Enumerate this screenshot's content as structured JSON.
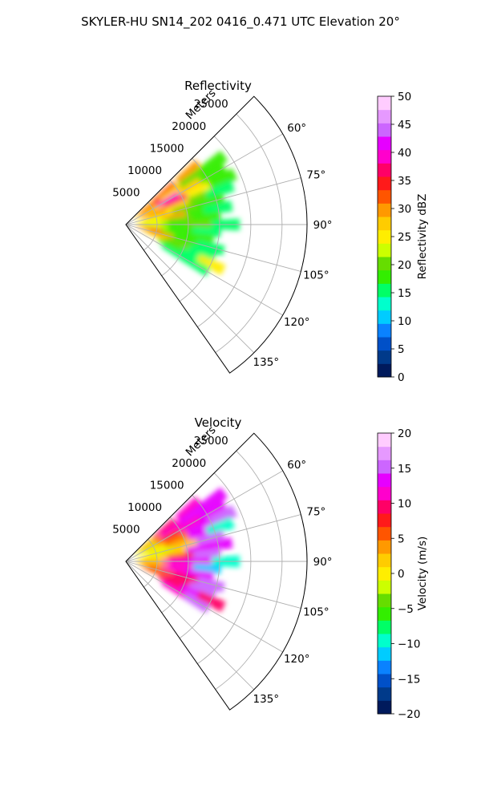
{
  "figure": {
    "suptitle": "SKYLER-HU  SN14_202  0416_0.471 UTC Elevation 20°"
  },
  "chart_data": [
    {
      "type": "heatmap",
      "subtype": "polar-sector-ppi",
      "title": "Reflectivity",
      "radial_axis": {
        "label": "Meters",
        "range": [
          0,
          29000
        ],
        "ticks": [
          5000,
          10000,
          15000,
          20000,
          25000
        ],
        "tick_labels": [
          "5000",
          "10000",
          "15000",
          "20000",
          "25000"
        ]
      },
      "angular_axis": {
        "range": [
          45,
          145
        ],
        "ticks": [
          60,
          75,
          90,
          105,
          120,
          135
        ],
        "tick_labels": [
          "60°",
          "75°",
          "90°",
          "105°",
          "120°",
          "135°"
        ],
        "zero": "north",
        "direction": "clockwise"
      },
      "grid": true,
      "colorbar": {
        "label": "Reflectivity dBZ",
        "range": [
          0,
          50
        ],
        "ticks": [
          0,
          5,
          10,
          15,
          20,
          25,
          30,
          35,
          40,
          45,
          50
        ],
        "tick_labels": [
          "0",
          "5",
          "10",
          "15",
          "20",
          "25",
          "30",
          "35",
          "40",
          "45",
          "50"
        ],
        "colors": [
          "#001a5c",
          "#003a8a",
          "#0050c8",
          "#0a82ff",
          "#00ccff",
          "#00ffcc",
          "#00ff66",
          "#33ee00",
          "#66dd00",
          "#ccff00",
          "#ffee00",
          "#ffcc00",
          "#ff9900",
          "#ff5500",
          "#ff1a1a",
          "#ff0066",
          "#ff00cc",
          "#e600ff",
          "#cc66ff",
          "#e699ff",
          "#ffccff"
        ]
      },
      "field_extent_m": 20000,
      "field_cells": [
        {
          "az": 50,
          "r": 4000,
          "v": 30
        },
        {
          "az": 50,
          "r": 8000,
          "v": 33
        },
        {
          "az": 50,
          "r": 13000,
          "v": 30
        },
        {
          "az": 55,
          "r": 5000,
          "v": 32
        },
        {
          "az": 55,
          "r": 9000,
          "v": 28
        },
        {
          "az": 55,
          "r": 13000,
          "v": 20
        },
        {
          "az": 55,
          "r": 17000,
          "v": 19
        },
        {
          "az": 60,
          "r": 4000,
          "v": 28
        },
        {
          "az": 60,
          "r": 8000,
          "v": 40
        },
        {
          "az": 60,
          "r": 12000,
          "v": 27
        },
        {
          "az": 60,
          "r": 16000,
          "v": 18
        },
        {
          "az": 65,
          "r": 6000,
          "v": 27
        },
        {
          "az": 65,
          "r": 9000,
          "v": 38
        },
        {
          "az": 65,
          "r": 13000,
          "v": 24
        },
        {
          "az": 65,
          "r": 17000,
          "v": 18
        },
        {
          "az": 70,
          "r": 5000,
          "v": 31
        },
        {
          "az": 70,
          "r": 9000,
          "v": 28
        },
        {
          "az": 70,
          "r": 13000,
          "v": 20
        },
        {
          "az": 70,
          "r": 16000,
          "v": 16
        },
        {
          "az": 75,
          "r": 6000,
          "v": 24
        },
        {
          "az": 75,
          "r": 10000,
          "v": 21
        },
        {
          "az": 75,
          "r": 14000,
          "v": 18
        },
        {
          "az": 80,
          "r": 4000,
          "v": 26
        },
        {
          "az": 80,
          "r": 8000,
          "v": 30
        },
        {
          "az": 80,
          "r": 12000,
          "v": 19
        },
        {
          "az": 80,
          "r": 15000,
          "v": 15
        },
        {
          "az": 85,
          "r": 5000,
          "v": 22
        },
        {
          "az": 85,
          "r": 9000,
          "v": 20
        },
        {
          "az": 85,
          "r": 13000,
          "v": 18
        },
        {
          "az": 90,
          "r": 4000,
          "v": 24
        },
        {
          "az": 90,
          "r": 8000,
          "v": 19
        },
        {
          "az": 90,
          "r": 12000,
          "v": 20
        },
        {
          "az": 90,
          "r": 16000,
          "v": 15
        },
        {
          "az": 95,
          "r": 5000,
          "v": 22
        },
        {
          "az": 95,
          "r": 9000,
          "v": 18
        },
        {
          "az": 95,
          "r": 13000,
          "v": 16
        },
        {
          "az": 100,
          "r": 4000,
          "v": 34
        },
        {
          "az": 100,
          "r": 8000,
          "v": 18
        },
        {
          "az": 100,
          "r": 12000,
          "v": 17
        },
        {
          "az": 105,
          "r": 6000,
          "v": 30
        },
        {
          "az": 105,
          "r": 10000,
          "v": 19
        },
        {
          "az": 105,
          "r": 14000,
          "v": 15
        },
        {
          "az": 110,
          "r": 5000,
          "v": 28
        },
        {
          "az": 110,
          "r": 9000,
          "v": 20
        },
        {
          "az": 110,
          "r": 13000,
          "v": 16
        },
        {
          "az": 115,
          "r": 8000,
          "v": 18
        },
        {
          "az": 115,
          "r": 12000,
          "v": 15
        },
        {
          "az": 115,
          "r": 15000,
          "v": 24
        },
        {
          "az": 120,
          "r": 9000,
          "v": 16
        },
        {
          "az": 120,
          "r": 13000,
          "v": 15
        }
      ]
    },
    {
      "type": "heatmap",
      "subtype": "polar-sector-ppi",
      "title": "Velocity",
      "radial_axis": {
        "label": "Meters",
        "range": [
          0,
          29000
        ],
        "ticks": [
          5000,
          10000,
          15000,
          20000,
          25000
        ],
        "tick_labels": [
          "5000",
          "10000",
          "15000",
          "20000",
          "25000"
        ]
      },
      "angular_axis": {
        "range": [
          45,
          145
        ],
        "ticks": [
          60,
          75,
          90,
          105,
          120,
          135
        ],
        "tick_labels": [
          "60°",
          "75°",
          "90°",
          "105°",
          "120°",
          "135°"
        ],
        "zero": "north",
        "direction": "clockwise"
      },
      "grid": true,
      "colorbar": {
        "label": "Velocity (m/s)",
        "range": [
          -20,
          20
        ],
        "ticks": [
          -20,
          -15,
          -10,
          -5,
          0,
          5,
          10,
          15,
          20
        ],
        "tick_labels": [
          "−20",
          "−15",
          "−10",
          "−5",
          "0",
          "5",
          "10",
          "15",
          "20"
        ],
        "colors": [
          "#001a5c",
          "#003a8a",
          "#0050c8",
          "#0a82ff",
          "#00ccff",
          "#00ffcc",
          "#00ff66",
          "#33ee00",
          "#66dd00",
          "#ccff00",
          "#ffee00",
          "#ffcc00",
          "#ff9900",
          "#ff5500",
          "#ff1a1a",
          "#ff0066",
          "#ff00cc",
          "#e600ff",
          "#cc66ff",
          "#e699ff",
          "#ffccff"
        ]
      },
      "field_extent_m": 20000,
      "field_cells": [
        {
          "az": 50,
          "r": 4000,
          "v": 2
        },
        {
          "az": 50,
          "r": 8000,
          "v": 10
        },
        {
          "az": 50,
          "r": 13000,
          "v": 11
        },
        {
          "az": 55,
          "r": 5000,
          "v": 4
        },
        {
          "az": 55,
          "r": 9000,
          "v": 11
        },
        {
          "az": 55,
          "r": 13000,
          "v": 13
        },
        {
          "az": 55,
          "r": 17000,
          "v": 14
        },
        {
          "az": 60,
          "r": 4000,
          "v": -2
        },
        {
          "az": 60,
          "r": 8000,
          "v": 8
        },
        {
          "az": 60,
          "r": 12000,
          "v": 12
        },
        {
          "az": 60,
          "r": 16000,
          "v": 14
        },
        {
          "az": 65,
          "r": 6000,
          "v": 1
        },
        {
          "az": 65,
          "r": 9000,
          "v": 6
        },
        {
          "az": 65,
          "r": 13000,
          "v": 13
        },
        {
          "az": 65,
          "r": 17000,
          "v": 15
        },
        {
          "az": 70,
          "r": 5000,
          "v": 0
        },
        {
          "az": 70,
          "r": 9000,
          "v": 3
        },
        {
          "az": 70,
          "r": 13000,
          "v": 14
        },
        {
          "az": 70,
          "r": 16000,
          "v": -9
        },
        {
          "az": 75,
          "r": 6000,
          "v": -1
        },
        {
          "az": 75,
          "r": 10000,
          "v": 2
        },
        {
          "az": 75,
          "r": 14000,
          "v": 15
        },
        {
          "az": 80,
          "r": 4000,
          "v": 0
        },
        {
          "az": 80,
          "r": 8000,
          "v": 1
        },
        {
          "az": 80,
          "r": 12000,
          "v": 13
        },
        {
          "az": 80,
          "r": 15000,
          "v": 14
        },
        {
          "az": 85,
          "r": 5000,
          "v": 2
        },
        {
          "az": 85,
          "r": 9000,
          "v": 8
        },
        {
          "az": 85,
          "r": 13000,
          "v": 15
        },
        {
          "az": 90,
          "r": 4000,
          "v": 1
        },
        {
          "az": 90,
          "r": 8000,
          "v": 12
        },
        {
          "az": 90,
          "r": 12000,
          "v": 14
        },
        {
          "az": 90,
          "r": 16000,
          "v": -10
        },
        {
          "az": 95,
          "r": 5000,
          "v": 3
        },
        {
          "az": 95,
          "r": 9000,
          "v": 12
        },
        {
          "az": 95,
          "r": 13000,
          "v": -11
        },
        {
          "az": 100,
          "r": 4000,
          "v": 4
        },
        {
          "az": 100,
          "r": 8000,
          "v": 11
        },
        {
          "az": 100,
          "r": 12000,
          "v": 14
        },
        {
          "az": 105,
          "r": 6000,
          "v": 5
        },
        {
          "az": 105,
          "r": 10000,
          "v": 10
        },
        {
          "az": 105,
          "r": 14000,
          "v": 15
        },
        {
          "az": 110,
          "r": 5000,
          "v": 6
        },
        {
          "az": 110,
          "r": 9000,
          "v": 9
        },
        {
          "az": 110,
          "r": 13000,
          "v": 15
        },
        {
          "az": 115,
          "r": 8000,
          "v": 10
        },
        {
          "az": 115,
          "r": 12000,
          "v": 14
        },
        {
          "az": 115,
          "r": 15000,
          "v": 10
        },
        {
          "az": 120,
          "r": 9000,
          "v": 12
        },
        {
          "az": 120,
          "r": 13000,
          "v": 15
        }
      ]
    }
  ]
}
